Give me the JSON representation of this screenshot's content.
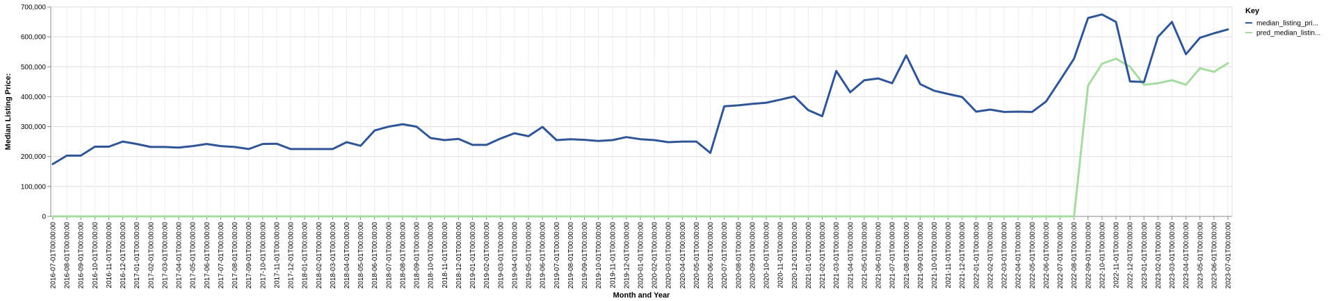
{
  "chart_data": {
    "type": "line",
    "xlabel": "Month and Year",
    "ylabel": "Median Listing Price:",
    "ylim": [
      0,
      700000
    ],
    "yticks": [
      "0",
      "100,000",
      "200,000",
      "300,000",
      "400,000",
      "500,000",
      "600,000",
      "700,000"
    ],
    "grid": true,
    "legend_title": "Key",
    "legend_position": "top-right",
    "x": [
      "2016-07-01T00:00:00",
      "2016-08-01T00:00:00",
      "2016-09-01T00:00:00",
      "2016-10-01T00:00:00",
      "2016-11-01T00:00:00",
      "2016-12-01T00:00:00",
      "2017-01-01T00:00:00",
      "2017-02-01T00:00:00",
      "2017-03-01T00:00:00",
      "2017-04-01T00:00:00",
      "2017-05-01T00:00:00",
      "2017-06-01T00:00:00",
      "2017-07-01T00:00:00",
      "2017-08-01T00:00:00",
      "2017-09-01T00:00:00",
      "2017-10-01T00:00:00",
      "2017-11-01T00:00:00",
      "2017-12-01T00:00:00",
      "2018-01-01T00:00:00",
      "2018-02-01T00:00:00",
      "2018-03-01T00:00:00",
      "2018-04-01T00:00:00",
      "2018-05-01T00:00:00",
      "2018-06-01T00:00:00",
      "2018-07-01T00:00:00",
      "2018-08-01T00:00:00",
      "2018-09-01T00:00:00",
      "2018-10-01T00:00:00",
      "2018-11-01T00:00:00",
      "2018-12-01T00:00:00",
      "2019-01-01T00:00:00",
      "2019-02-01T00:00:00",
      "2019-03-01T00:00:00",
      "2019-04-01T00:00:00",
      "2019-05-01T00:00:00",
      "2019-06-01T00:00:00",
      "2019-07-01T00:00:00",
      "2019-08-01T00:00:00",
      "2019-09-01T00:00:00",
      "2019-10-01T00:00:00",
      "2019-11-01T00:00:00",
      "2019-12-01T00:00:00",
      "2020-01-01T00:00:00",
      "2020-02-01T00:00:00",
      "2020-03-01T00:00:00",
      "2020-04-01T00:00:00",
      "2020-05-01T00:00:00",
      "2020-06-01T00:00:00",
      "2020-07-01T00:00:00",
      "2020-08-01T00:00:00",
      "2020-09-01T00:00:00",
      "2020-10-01T00:00:00",
      "2020-11-01T00:00:00",
      "2020-12-01T00:00:00",
      "2021-01-01T00:00:00",
      "2021-02-01T00:00:00",
      "2021-03-01T00:00:00",
      "2021-04-01T00:00:00",
      "2021-05-01T00:00:00",
      "2021-06-01T00:00:00",
      "2021-07-01T00:00:00",
      "2021-08-01T00:00:00",
      "2021-09-01T00:00:00",
      "2021-10-01T00:00:00",
      "2021-11-01T00:00:00",
      "2021-12-01T00:00:00",
      "2022-01-01T00:00:00",
      "2022-02-01T00:00:00",
      "2022-03-01T00:00:00",
      "2022-04-01T00:00:00",
      "2022-05-01T00:00:00",
      "2022-06-01T00:00:00",
      "2022-07-01T00:00:00",
      "2022-08-01T00:00:00",
      "2022-09-01T00:00:00",
      "2022-10-01T00:00:00",
      "2022-11-01T00:00:00",
      "2022-12-01T00:00:00",
      "2023-01-01T00:00:00",
      "2023-02-01T00:00:00",
      "2023-03-01T00:00:00",
      "2023-04-01T00:00:00",
      "2023-05-01T00:00:00",
      "2023-06-01T00:00:00",
      "2023-07-01T00:00:00"
    ],
    "series": [
      {
        "name": "median_listing_pri...",
        "color": "#2f5597",
        "values": [
          175000,
          203000,
          203000,
          233000,
          233000,
          250000,
          242000,
          232000,
          232000,
          230000,
          235000,
          242000,
          235000,
          232000,
          225000,
          242000,
          243000,
          225000,
          225000,
          225000,
          225000,
          248000,
          236000,
          287000,
          300000,
          308000,
          300000,
          262000,
          255000,
          259000,
          239000,
          239000,
          260000,
          278000,
          268000,
          299000,
          255000,
          258000,
          256000,
          252000,
          255000,
          265000,
          258000,
          255000,
          248000,
          250000,
          250000,
          212000,
          368000,
          371000,
          376000,
          380000,
          390000,
          401000,
          355000,
          335000,
          486000,
          415000,
          455000,
          461000,
          445000,
          538000,
          442000,
          420000,
          409000,
          399000,
          350000,
          357000,
          349000,
          350000,
          349000,
          384000,
          455000,
          527000,
          663000,
          675000,
          650000,
          451000,
          449000,
          600000,
          650000,
          542000,
          597000,
          612000,
          625000
        ]
      },
      {
        "name": "pred_median_listin...",
        "color": "#a6dba0",
        "values": [
          0,
          0,
          0,
          0,
          0,
          0,
          0,
          0,
          0,
          0,
          0,
          0,
          0,
          0,
          0,
          0,
          0,
          0,
          0,
          0,
          0,
          0,
          0,
          0,
          0,
          0,
          0,
          0,
          0,
          0,
          0,
          0,
          0,
          0,
          0,
          0,
          0,
          0,
          0,
          0,
          0,
          0,
          0,
          0,
          0,
          0,
          0,
          0,
          0,
          0,
          0,
          0,
          0,
          0,
          0,
          0,
          0,
          0,
          0,
          0,
          0,
          0,
          0,
          0,
          0,
          0,
          0,
          0,
          0,
          0,
          0,
          0,
          0,
          0,
          437000,
          510000,
          527000,
          500000,
          440000,
          445000,
          455000,
          440000,
          495000,
          483000,
          512000
        ]
      }
    ]
  }
}
